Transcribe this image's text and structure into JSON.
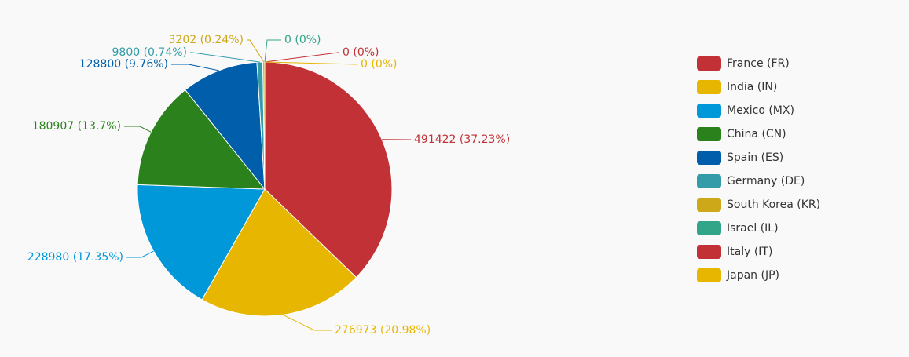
{
  "chart_data": {
    "type": "pie",
    "categories": [
      "France (FR)",
      "India (IN)",
      "Mexico (MX)",
      "China (CN)",
      "Spain (ES)",
      "Germany (DE)",
      "South Korea (KR)",
      "Israel (IL)",
      "Italy (IT)",
      "Japan (JP)"
    ],
    "values": [
      491422,
      276973,
      228980,
      180907,
      128800,
      9800,
      3202,
      0,
      0,
      0
    ],
    "value_labels": [
      "491422 (37.23%)",
      "276973 (20.98%)",
      "228980 (17.35%)",
      "180907 (13.7%)",
      "128800 (9.76%)",
      "9800 (0.74%)",
      "3202 (0.24%)",
      "0 (0%)",
      "0 (0%)",
      "0 (0%)"
    ],
    "colors": [
      "#c23135",
      "#e6b600",
      "#0098d9",
      "#2b821d",
      "#005eaa",
      "#339ca8",
      "#cda819",
      "#32a487",
      "#c23135",
      "#e6b600"
    ],
    "legend_position": "right"
  }
}
